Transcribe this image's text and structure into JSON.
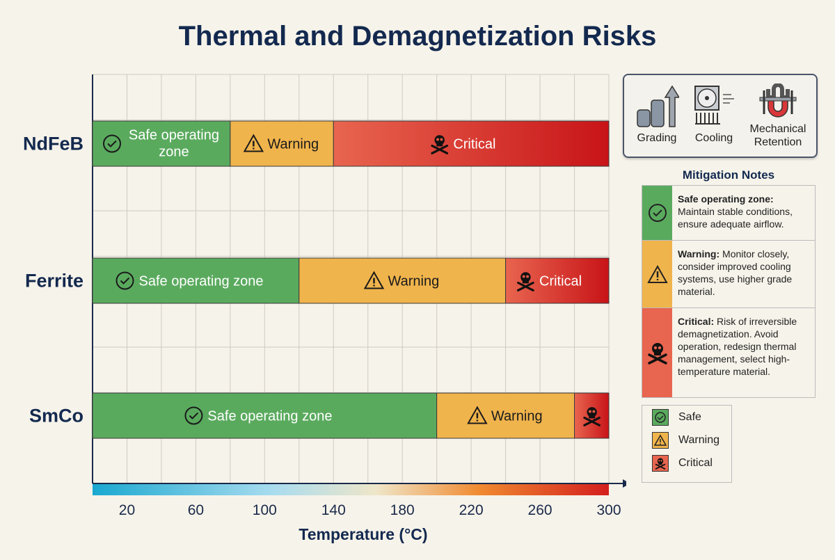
{
  "title": "Thermal and Demagnetization Risks",
  "colors": {
    "safe": "#5aaa5e",
    "warning": "#f0b44c",
    "critical_start": "#e8654f",
    "critical_end": "#c81418"
  },
  "chart_data": {
    "type": "bar",
    "orientation": "horizontal-stacked",
    "title": "Thermal and Demagnetization Risks",
    "xlabel": "Temperature (°C)",
    "xlim": [
      0,
      300
    ],
    "xticks": [
      20,
      60,
      100,
      140,
      180,
      220,
      260,
      300
    ],
    "grid": true,
    "categories": [
      "NdFeB",
      "Ferrite",
      "SmCo"
    ],
    "bars": [
      {
        "material": "NdFeB",
        "segments": [
          {
            "zone": "safe",
            "from": 0,
            "to": 80,
            "label": "Safe operating zone"
          },
          {
            "zone": "warning",
            "from": 80,
            "to": 140,
            "label": "Warning"
          },
          {
            "zone": "critical",
            "from": 140,
            "to": 300,
            "label": "Critical"
          }
        ]
      },
      {
        "material": "Ferrite",
        "segments": [
          {
            "zone": "safe",
            "from": 0,
            "to": 120,
            "label": "Safe operating zone"
          },
          {
            "zone": "warning",
            "from": 120,
            "to": 240,
            "label": "Warning"
          },
          {
            "zone": "critical",
            "from": 240,
            "to": 300,
            "label": "Critical"
          }
        ]
      },
      {
        "material": "SmCo",
        "segments": [
          {
            "zone": "safe",
            "from": 0,
            "to": 200,
            "label": "Safe operating zone"
          },
          {
            "zone": "warning",
            "from": 200,
            "to": 280,
            "label": "Warning"
          },
          {
            "zone": "critical",
            "from": 280,
            "to": 300,
            "label": ""
          }
        ]
      }
    ]
  },
  "tools": [
    {
      "label": "Grading",
      "icon": "grading-icon"
    },
    {
      "label": "Cooling",
      "icon": "cooling-fan-icon"
    },
    {
      "label": "Mechanical Retention",
      "icon": "magnet-clamp-icon"
    }
  ],
  "mitigation": {
    "title": "Mitigation Notes",
    "notes": [
      {
        "head": "Safe operating zone:",
        "body": " Maintain stable conditions, ensure adequate airflow."
      },
      {
        "head": "Warning:",
        "body": " Monitor closely, consider improved cooling systems, use higher grade material."
      },
      {
        "head": "Critical:",
        "body": " Risk of irreversible demagnetization. Avoid operation, redesign thermal management, select high-temperature material."
      }
    ]
  },
  "legend": [
    "Safe",
    "Warning",
    "Critical"
  ]
}
